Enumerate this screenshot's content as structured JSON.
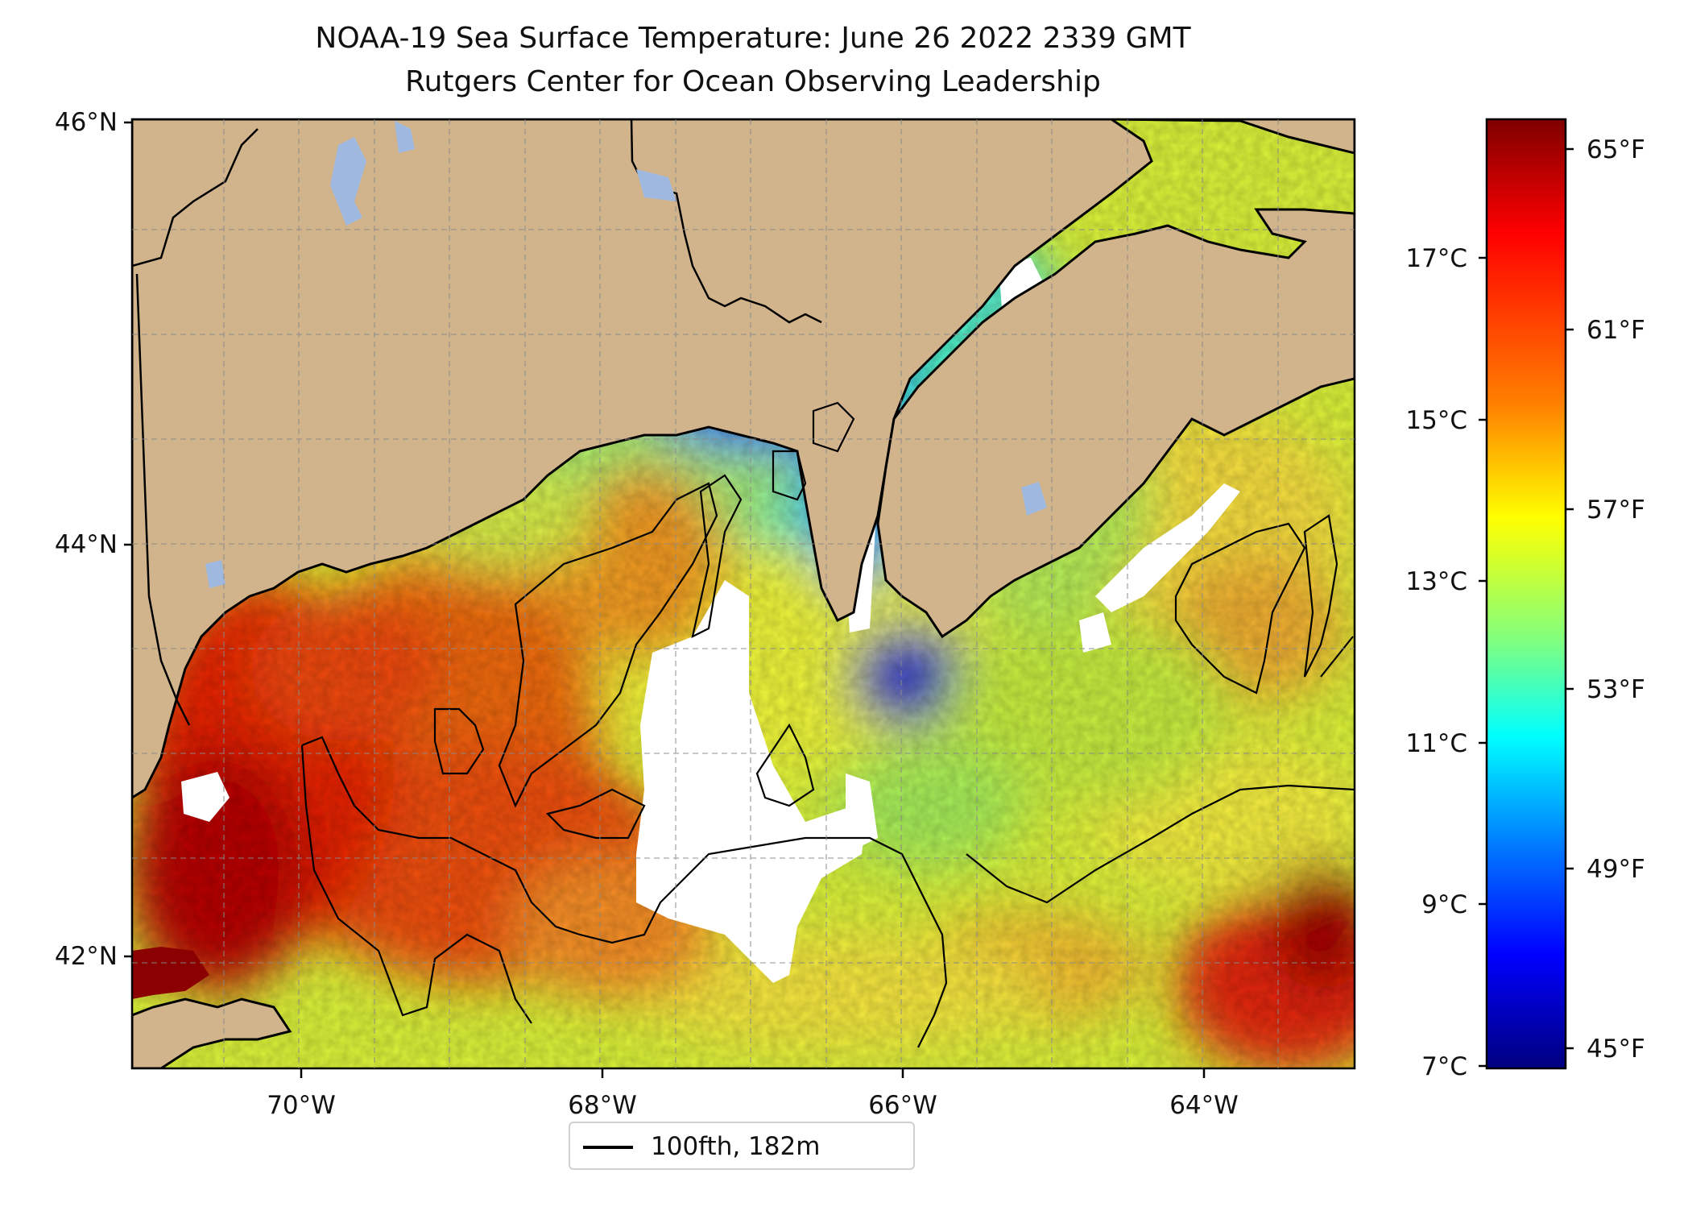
{
  "title": "NOAA-19 Sea Surface Temperature: June 26 2022 2339 GMT",
  "subtitle": "Rutgers Center for Ocean Observing Leadership",
  "map": {
    "lat_labels": [
      "46°N",
      "44°N",
      "42°N"
    ],
    "lon_labels": [
      "70°W",
      "68°W",
      "66°W",
      "64°W"
    ],
    "gridlines": "dashed"
  },
  "colorbar": {
    "celsius_labels": [
      "17°C",
      "15°C",
      "13°C",
      "11°C",
      "9°C",
      "7°C"
    ],
    "fahrenheit_labels": [
      "65°F",
      "61°F",
      "57°F",
      "53°F",
      "49°F",
      "45°F"
    ],
    "colormap": [
      "#7f0000",
      "#ff0000",
      "#ff7f00",
      "#ffff00",
      "#7fff7f",
      "#00ffff",
      "#007fff",
      "#0000ff",
      "#00007f"
    ]
  },
  "legend": {
    "label": "100fth, 182m",
    "line_color": "#000000"
  },
  "colors": {
    "land": "#d2b48c",
    "lakes": "#9fb8e0",
    "cloud_gaps": "#ffffff",
    "coastline": "#000000"
  }
}
